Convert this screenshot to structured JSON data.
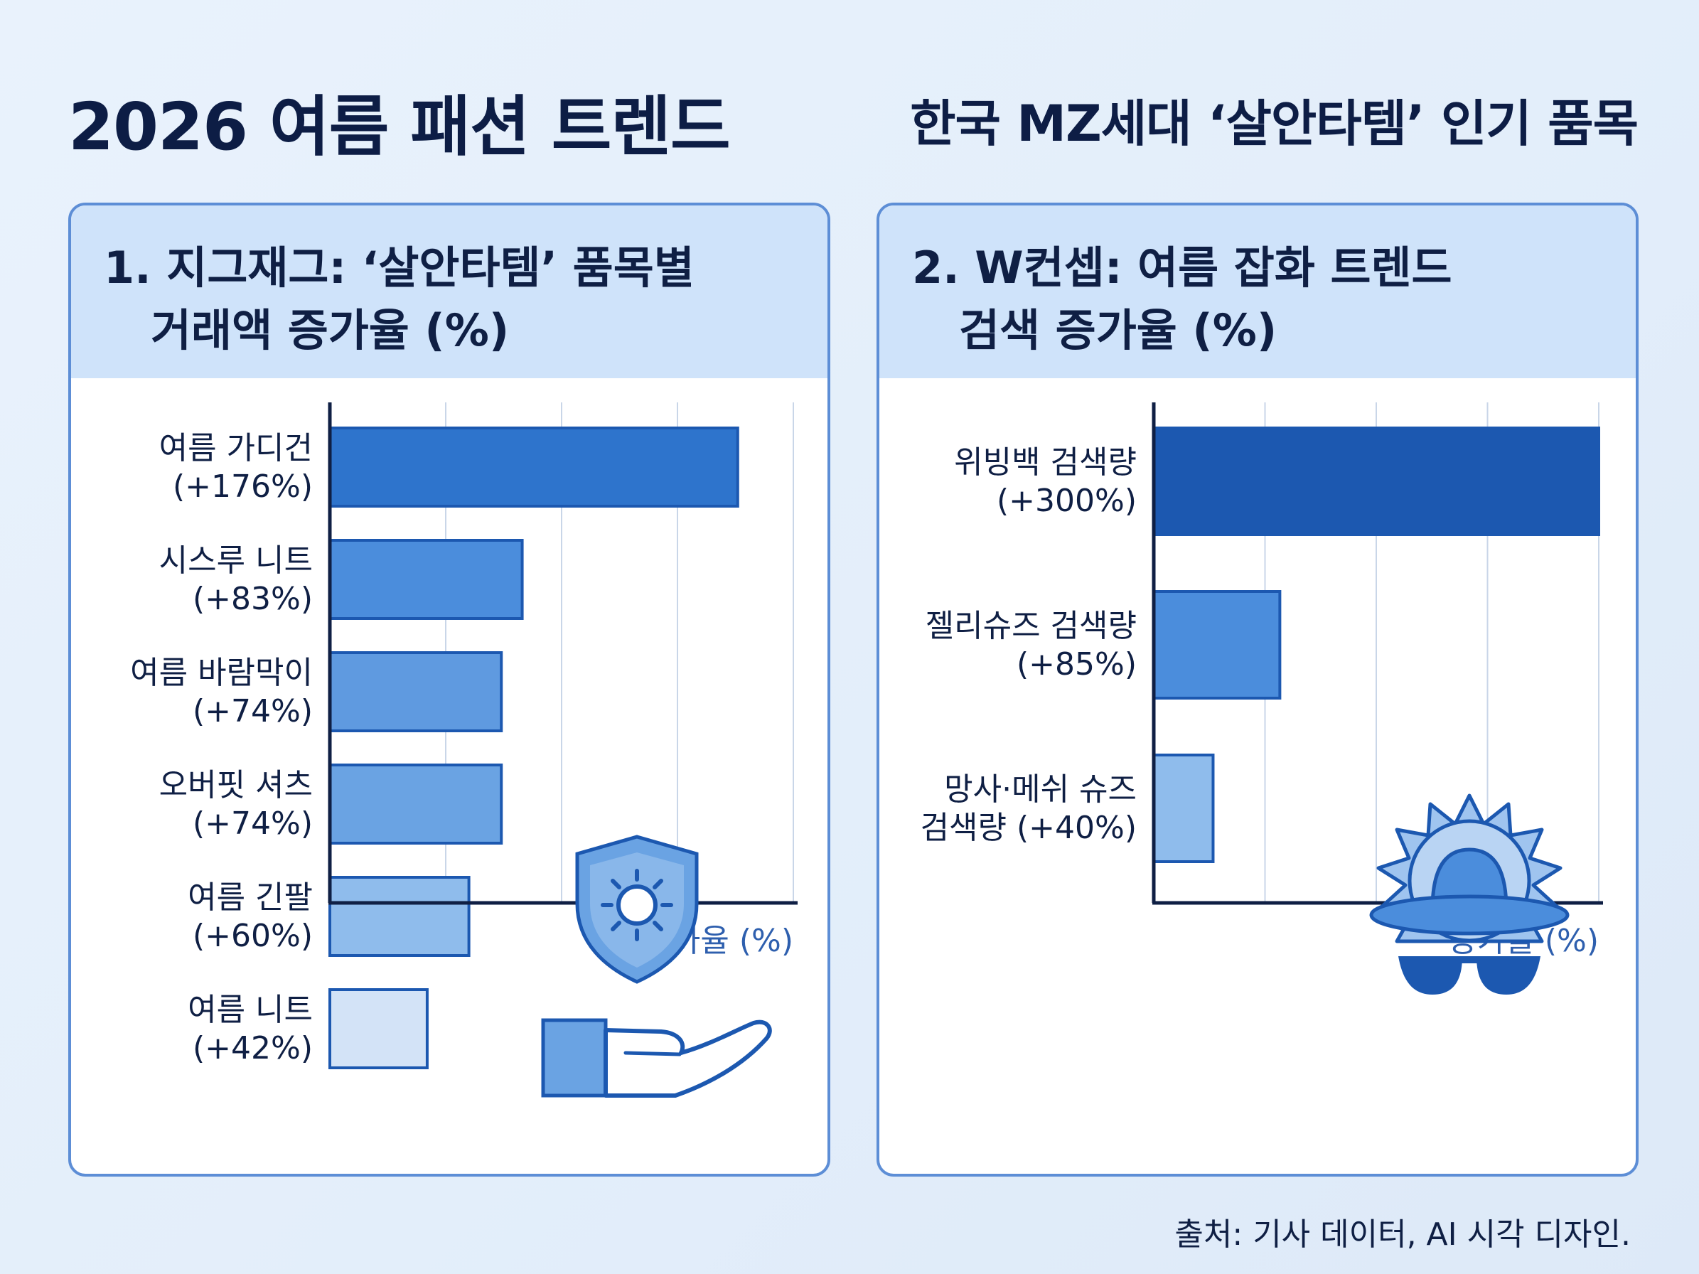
{
  "header": {
    "title": "2026 여름 패션 트렌드",
    "subtitle": "한국 MZ세대 ‘살안타템’ 인기 품목"
  },
  "panels": [
    {
      "title_line1": "1. 지그재그: ‘살안타템’ 품목별",
      "title_line2": "거래액 증가율 (%)"
    },
    {
      "title_line1": "2. W컨셉: 여름 잡화 트렌드",
      "title_line2": "검색 증가율 (%)"
    }
  ],
  "chart_data": [
    {
      "type": "bar",
      "orientation": "horizontal",
      "title": "1. 지그재그: ‘살안타템’ 품목별 거래액 증가율 (%)",
      "xlabel": "증가율 (%)",
      "xlim": [
        0,
        200
      ],
      "grid": true,
      "categories": [
        [
          "여름 가디건",
          "(+176%)"
        ],
        [
          "시스루 니트",
          "(+83%)"
        ],
        [
          "여름 바람막이",
          "(+74%)"
        ],
        [
          "오버핏 셔츠",
          "(+74%)"
        ],
        [
          "여름 긴팔",
          "(+60%)"
        ],
        [
          "여름 니트",
          "(+42%)"
        ]
      ],
      "values": [
        176,
        83,
        74,
        74,
        60,
        42
      ],
      "colors": [
        "#2e74cc",
        "#4b8ddc",
        "#5f9ae0",
        "#6aa3e3",
        "#8fbcec",
        "#d3e3f7"
      ]
    },
    {
      "type": "bar",
      "orientation": "horizontal",
      "title": "2. W컨셉: 여름 잡화 트렌드 검색 증가율 (%)",
      "xlabel": "증가율 (%)",
      "xlim": [
        0,
        300
      ],
      "grid": true,
      "categories": [
        [
          "위빙백 검색량",
          "(+300%)"
        ],
        [
          "젤리슈즈 검색량",
          "(+85%)"
        ],
        [
          "망사·메쉬 슈즈",
          "검색량 (+40%)"
        ]
      ],
      "values": [
        300,
        85,
        40
      ],
      "colors": [
        "#1c58b0",
        "#4b8ddc",
        "#8fbcec"
      ]
    }
  ],
  "footer": {
    "source": "출처: 기사 데이터, AI 시각 디자인."
  },
  "icons": {
    "panel1": "shield-sun-hand-icon",
    "panel2": "sun-hat-sunglasses-icon"
  },
  "colors": {
    "accent": "#5d8ed6",
    "header_bg": "#cfe3fa",
    "axis": "#0f1f44"
  }
}
